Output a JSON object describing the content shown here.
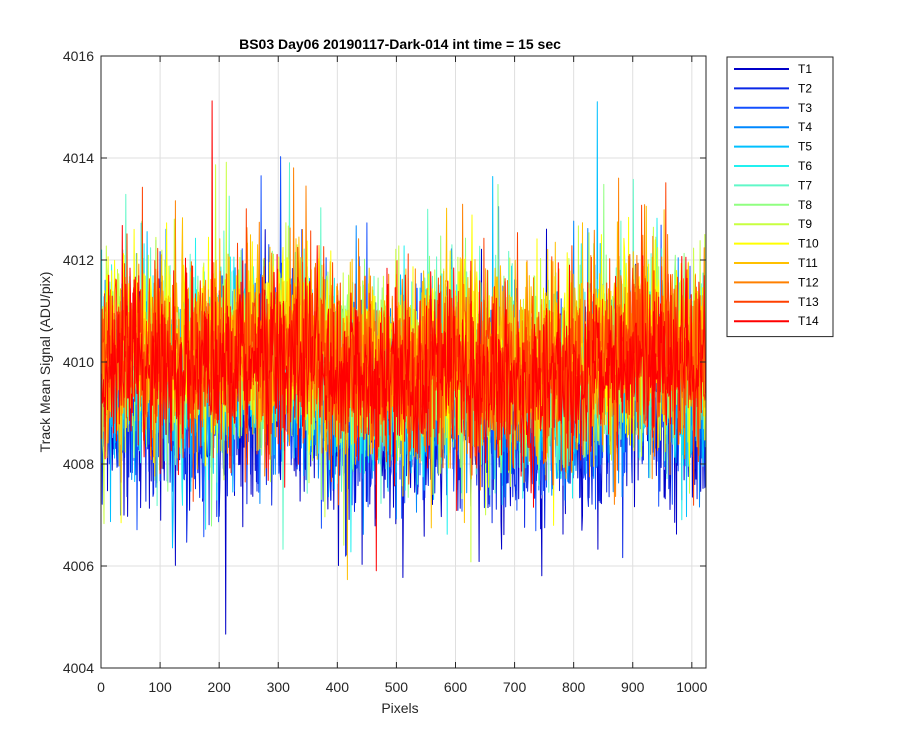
{
  "chart_data": {
    "type": "line",
    "title": "BS03 Day06 20190117-Dark-014 int time = 15 sec",
    "xlabel": "Pixels",
    "ylabel": "Track Mean Signal (ADU/pix)",
    "xlim": [
      0,
      1024
    ],
    "ylim": [
      4004,
      4016
    ],
    "xticks": [
      0,
      100,
      200,
      300,
      400,
      500,
      600,
      700,
      800,
      900,
      1000
    ],
    "yticks": [
      4004,
      4006,
      4008,
      4010,
      4012,
      4014,
      4016
    ],
    "grid": true,
    "legend_position": "outside-top-right",
    "series": [
      {
        "name": "T1",
        "color": "#0000c8",
        "mean": 4008.9,
        "spread": 0.95
      },
      {
        "name": "T2",
        "color": "#0a28e6",
        "mean": 4009.1,
        "spread": 0.9
      },
      {
        "name": "T3",
        "color": "#1450ff",
        "mean": 4009.3,
        "spread": 0.9
      },
      {
        "name": "T4",
        "color": "#0088ff",
        "mean": 4009.5,
        "spread": 0.9
      },
      {
        "name": "T5",
        "color": "#00c0ff",
        "mean": 4009.6,
        "spread": 0.9
      },
      {
        "name": "T6",
        "color": "#20f0f0",
        "mean": 4009.8,
        "spread": 0.9
      },
      {
        "name": "T7",
        "color": "#60f8c8",
        "mean": 4009.9,
        "spread": 0.9
      },
      {
        "name": "T8",
        "color": "#90ff80",
        "mean": 4010.0,
        "spread": 0.9
      },
      {
        "name": "T9",
        "color": "#c8ff40",
        "mean": 4010.1,
        "spread": 0.9
      },
      {
        "name": "T10",
        "color": "#ffff00",
        "mean": 4010.2,
        "spread": 0.9
      },
      {
        "name": "T11",
        "color": "#ffc000",
        "mean": 4010.2,
        "spread": 0.9
      },
      {
        "name": "T12",
        "color": "#ff8000",
        "mean": 4010.1,
        "spread": 0.9
      },
      {
        "name": "T13",
        "color": "#ff4000",
        "mean": 4010.0,
        "spread": 0.85
      },
      {
        "name": "T14",
        "color": "#ff0000",
        "mean": 4009.8,
        "spread": 0.85
      }
    ]
  }
}
